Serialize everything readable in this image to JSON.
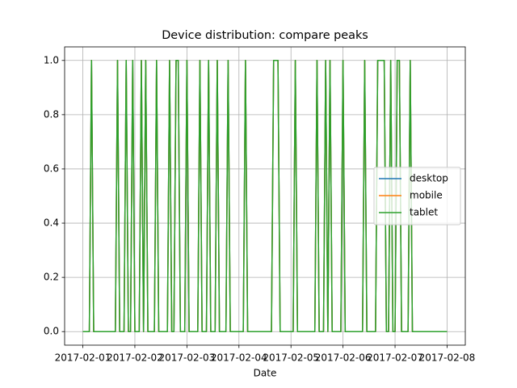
{
  "chart_data": {
    "type": "line",
    "title": "Device distribution: compare peaks",
    "x_label": "Date",
    "x": [
      "2017-02-01 00:00",
      "2017-02-01 03:00",
      "2017-02-01 04:00",
      "2017-02-01 05:00",
      "2017-02-01 15:00",
      "2017-02-01 16:00",
      "2017-02-01 17:00",
      "2017-02-01 19:00",
      "2017-02-01 20:00",
      "2017-02-01 21:00",
      "2017-02-01 22:00",
      "2017-02-01 23:00",
      "2017-02-02 00:00",
      "2017-02-02 02:00",
      "2017-02-02 03:00",
      "2017-02-02 04:00",
      "2017-02-02 05:00",
      "2017-02-02 06:00",
      "2017-02-02 09:00",
      "2017-02-02 10:00",
      "2017-02-02 11:00",
      "2017-02-02 15:00",
      "2017-02-02 16:00",
      "2017-02-02 17:00",
      "2017-02-02 18:00",
      "2017-02-02 19:00",
      "2017-02-02 20:00",
      "2017-02-02 21:00",
      "2017-02-02 23:00",
      "2017-02-03 00:00",
      "2017-02-03 01:00",
      "2017-02-03 05:00",
      "2017-02-03 06:00",
      "2017-02-03 07:00",
      "2017-02-03 09:00",
      "2017-02-03 10:00",
      "2017-02-03 11:00",
      "2017-02-03 13:00",
      "2017-02-03 14:00",
      "2017-02-03 15:00",
      "2017-02-03 18:00",
      "2017-02-03 19:00",
      "2017-02-03 20:00",
      "2017-02-04 02:00",
      "2017-02-04 03:00",
      "2017-02-04 04:00",
      "2017-02-04 15:00",
      "2017-02-04 16:00",
      "2017-02-04 17:00",
      "2017-02-04 18:00",
      "2017-02-04 19:00",
      "2017-02-05 01:00",
      "2017-02-05 02:00",
      "2017-02-05 03:00",
      "2017-02-05 11:00",
      "2017-02-05 12:00",
      "2017-02-05 13:00",
      "2017-02-05 15:00",
      "2017-02-05 16:00",
      "2017-02-05 17:00",
      "2017-02-05 18:00",
      "2017-02-05 19:00",
      "2017-02-05 23:00",
      "2017-02-06 00:00",
      "2017-02-06 01:00",
      "2017-02-06 09:00",
      "2017-02-06 10:00",
      "2017-02-06 11:00",
      "2017-02-06 15:00",
      "2017-02-06 16:00",
      "2017-02-06 17:00",
      "2017-02-06 18:00",
      "2017-02-06 19:00",
      "2017-02-06 20:00",
      "2017-02-06 21:00",
      "2017-02-06 22:00",
      "2017-02-06 23:00",
      "2017-02-07 00:00",
      "2017-02-07 01:00",
      "2017-02-07 02:00",
      "2017-02-07 03:00",
      "2017-02-07 06:00",
      "2017-02-07 07:00",
      "2017-02-07 08:00",
      "2017-02-08 00:00"
    ],
    "series": [
      {
        "name": "desktop",
        "color": "#1f77b4",
        "values": [
          0,
          0,
          1,
          0,
          0,
          1,
          0,
          0,
          1,
          0,
          0,
          1,
          0,
          0,
          1,
          0,
          1,
          0,
          0,
          1,
          0,
          0,
          1,
          0,
          0,
          1,
          1,
          0,
          0,
          1,
          0,
          0,
          1,
          0,
          0,
          1,
          0,
          0,
          1,
          0,
          0,
          1,
          0,
          0,
          1,
          0,
          0,
          1,
          1,
          1,
          0,
          0,
          1,
          0,
          0,
          1,
          0,
          0,
          1,
          0,
          1,
          0,
          0,
          1,
          0,
          0,
          1,
          0,
          0,
          1,
          1,
          1,
          1,
          0,
          0,
          1,
          0,
          0,
          1,
          1,
          0,
          0,
          1,
          0,
          0
        ]
      },
      {
        "name": "mobile",
        "color": "#ff7f0e",
        "values": [
          0,
          0,
          1,
          0,
          0,
          1,
          0,
          0,
          1,
          0,
          0,
          1,
          0,
          0,
          1,
          0,
          1,
          0,
          0,
          1,
          0,
          0,
          1,
          0,
          0,
          1,
          1,
          0,
          0,
          1,
          0,
          0,
          1,
          0,
          0,
          1,
          0,
          0,
          1,
          0,
          0,
          1,
          0,
          0,
          1,
          0,
          0,
          1,
          1,
          1,
          0,
          0,
          1,
          0,
          0,
          1,
          0,
          0,
          1,
          0,
          1,
          0,
          0,
          1,
          0,
          0,
          1,
          0,
          0,
          1,
          1,
          1,
          1,
          0,
          0,
          1,
          0,
          0,
          1,
          1,
          0,
          0,
          1,
          0,
          0
        ]
      },
      {
        "name": "tablet",
        "color": "#2ca02c",
        "values": [
          0,
          0,
          1,
          0,
          0,
          1,
          0,
          0,
          1,
          0,
          0,
          1,
          0,
          0,
          1,
          0,
          1,
          0,
          0,
          1,
          0,
          0,
          1,
          0,
          0,
          1,
          1,
          0,
          0,
          1,
          0,
          0,
          1,
          0,
          0,
          1,
          0,
          0,
          1,
          0,
          0,
          1,
          0,
          0,
          1,
          0,
          0,
          1,
          1,
          1,
          0,
          0,
          1,
          0,
          0,
          1,
          0,
          0,
          1,
          0,
          1,
          0,
          0,
          1,
          0,
          0,
          1,
          0,
          0,
          1,
          1,
          1,
          1,
          0,
          0,
          1,
          0,
          0,
          1,
          1,
          0,
          0,
          1,
          0,
          0
        ]
      }
    ],
    "xlim": [
      "2017-01-31 15:36",
      "2017-02-08 08:24"
    ],
    "xticks": [
      {
        "value": "2017-02-01 00:00",
        "label": "2017-02-01"
      },
      {
        "value": "2017-02-02 00:00",
        "label": "2017-02-02"
      },
      {
        "value": "2017-02-03 00:00",
        "label": "2017-02-03"
      },
      {
        "value": "2017-02-04 00:00",
        "label": "2017-02-04"
      },
      {
        "value": "2017-02-05 00:00",
        "label": "2017-02-05"
      },
      {
        "value": "2017-02-06 00:00",
        "label": "2017-02-06"
      },
      {
        "value": "2017-02-07 00:00",
        "label": "2017-02-07"
      },
      {
        "value": "2017-02-08 00:00",
        "label": "2017-02-08"
      }
    ],
    "ylim": [
      -0.05,
      1.05
    ],
    "yticks": [
      {
        "value": 0,
        "label": "0.0"
      },
      {
        "value": 0.2,
        "label": "0.2"
      },
      {
        "value": 0.4,
        "label": "0.4"
      },
      {
        "value": 0.6,
        "label": "0.6"
      },
      {
        "value": 0.8,
        "label": "0.8"
      },
      {
        "value": 1,
        "label": "1.0"
      }
    ],
    "grid": true,
    "legend": "center right"
  }
}
